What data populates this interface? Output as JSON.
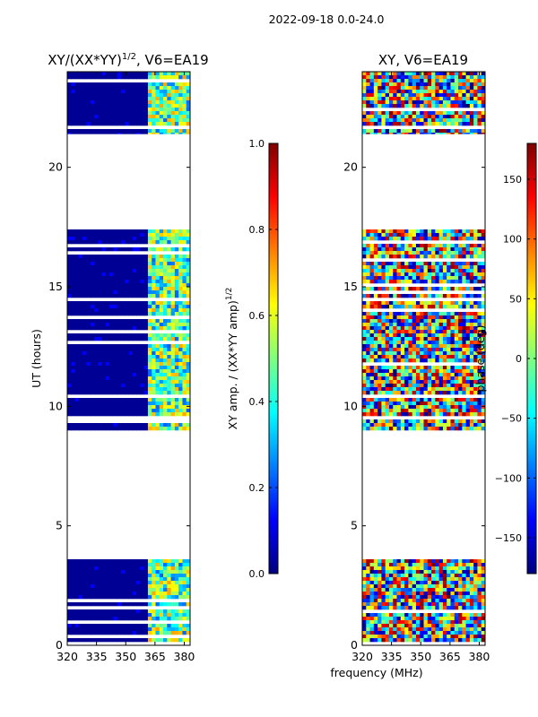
{
  "suptitle": "2022-09-18 0.0-24.0",
  "xlabel": "frequency (MHz)",
  "colormap": [
    "#00007f",
    "#0000ff",
    "#007fff",
    "#00ffff",
    "#7fff7f",
    "#ffff00",
    "#ff7f00",
    "#ff0000",
    "#7f0000"
  ],
  "chart_data": [
    {
      "type": "heatmap",
      "title_main": "XY/(XX*YY)",
      "title_sup": "1/2",
      "title_suffix": ", V6=EA19",
      "xlabel": "",
      "ylabel": "UT (hours)",
      "x_range": [
        320,
        383
      ],
      "y_range": [
        0,
        24
      ],
      "x_ticks": [
        "320",
        "335",
        "350",
        "365",
        "380"
      ],
      "x_tick_values": [
        320,
        335,
        350,
        365,
        380
      ],
      "y_ticks": [
        "0",
        "5",
        "10",
        "15",
        "20"
      ],
      "y_tick_values": [
        0,
        5,
        10,
        15,
        20
      ],
      "colorbar": {
        "label_main": "XY amp. / (XX*YY amp)",
        "label_sup": "1/2",
        "range": [
          0.0,
          1.0
        ],
        "ticks": [
          "0.0",
          "0.2",
          "0.4",
          "0.6",
          "0.8",
          "1.0"
        ],
        "tick_values": [
          0.0,
          0.2,
          0.4,
          0.6,
          0.8,
          1.0
        ]
      },
      "data_blocks_hours": [
        [
          0,
          3.6
        ],
        [
          9.0,
          17.4
        ],
        [
          21.4,
          24
        ]
      ],
      "value_description": "low (dark blue) below ~360 MHz, patchy 0.3-0.7 above 360 MHz"
    },
    {
      "type": "heatmap",
      "title_main": "XY, V6=EA19",
      "xlabel": "",
      "ylabel": "",
      "x_range": [
        320,
        383
      ],
      "y_range": [
        0,
        24
      ],
      "x_ticks": [
        "320",
        "335",
        "350",
        "365",
        "380"
      ],
      "x_tick_values": [
        320,
        335,
        350,
        365,
        380
      ],
      "y_ticks": [
        "0",
        "5",
        "10",
        "15",
        "20"
      ],
      "y_tick_values": [
        0,
        5,
        10,
        15,
        20
      ],
      "colorbar": {
        "label_main": "phase (deg)",
        "range": [
          -180,
          180
        ],
        "ticks": [
          "−150",
          "−100",
          "−50",
          "0",
          "50",
          "100",
          "150"
        ],
        "tick_values": [
          -150,
          -100,
          -50,
          0,
          50,
          100,
          150
        ]
      },
      "data_blocks_hours": [
        [
          0,
          3.6
        ],
        [
          9.0,
          17.4
        ],
        [
          21.4,
          24
        ]
      ],
      "value_description": "noisy phase spanning full -180 to 180 deg range"
    }
  ]
}
